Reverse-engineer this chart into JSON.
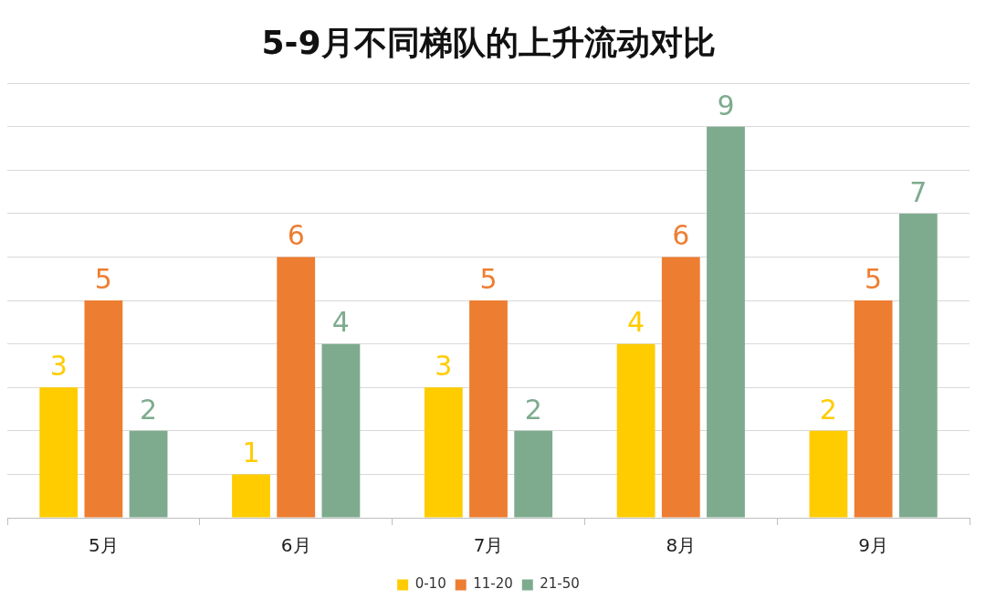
{
  "chart_data": {
    "type": "bar",
    "title": "5-9月不同梯队的上升流动对比",
    "categories": [
      "5月",
      "6月",
      "7月",
      "8月",
      "9月"
    ],
    "series": [
      {
        "name": "0-10",
        "color": "#ffcc00",
        "values": [
          3,
          1,
          3,
          4,
          2
        ]
      },
      {
        "name": "11-20",
        "color": "#ed7d31",
        "values": [
          5,
          6,
          5,
          6,
          5
        ]
      },
      {
        "name": "21-50",
        "color": "#7eab8e",
        "values": [
          2,
          4,
          2,
          9,
          7
        ]
      }
    ],
    "ylim": [
      0,
      10
    ],
    "yticks": [
      {
        "value": 0,
        "label": null
      },
      {
        "value": 1,
        "label": null
      },
      {
        "value": 2,
        "label": null
      },
      {
        "value": 3,
        "label": null
      },
      {
        "value": 4,
        "label": null
      },
      {
        "value": 5,
        "label": null
      },
      {
        "value": 6,
        "label": null
      },
      {
        "value": 7,
        "label": null
      },
      {
        "value": 8,
        "label": null
      },
      {
        "value": 9,
        "label": null
      },
      {
        "value": 10,
        "label": null
      }
    ],
    "tick_labels": "x",
    "grid": "y",
    "legend": "bottom",
    "data_labels": true
  }
}
